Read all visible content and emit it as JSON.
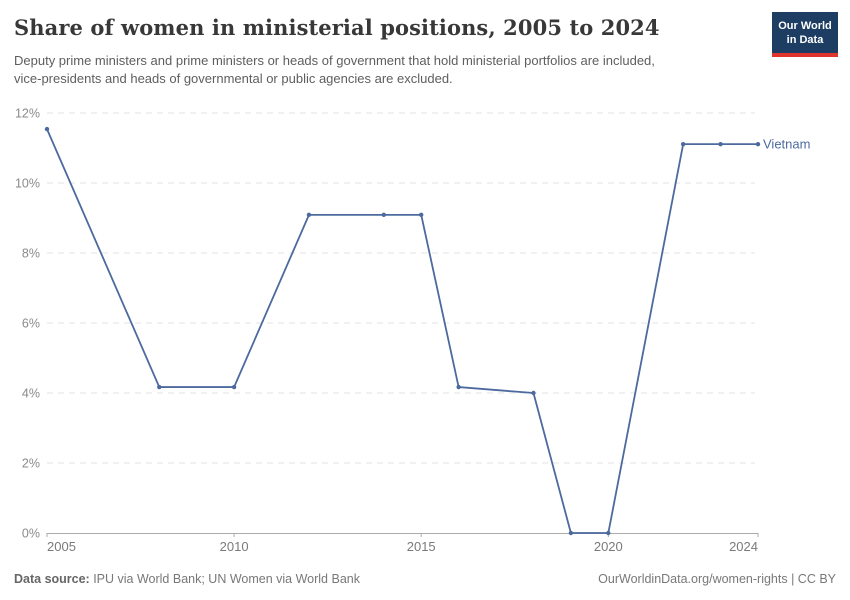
{
  "header": {
    "title": "Share of women in ministerial positions, 2005 to 2024",
    "subtitle": "Deputy prime ministers and prime ministers or heads of government that hold ministerial portfolios are included, vice-presidents and heads of governmental or public agencies are excluded.",
    "logo": {
      "line1": "Our World",
      "line2": "in Data",
      "bg_color": "#1d3d63",
      "accent_color": "#e0342c"
    }
  },
  "chart_data": {
    "type": "line",
    "title": "Share of women in ministerial positions, 2005 to 2024",
    "xlabel": "",
    "ylabel": "",
    "xlim": [
      2005,
      2024
    ],
    "ylim": [
      0,
      12
    ],
    "x_ticks": [
      2005,
      2010,
      2015,
      2020,
      2024
    ],
    "y_ticks": [
      0,
      2,
      4,
      6,
      8,
      10,
      12
    ],
    "y_tick_suffix": "%",
    "grid": "horizontal-dashed",
    "legend_position": "line-end-label",
    "series": [
      {
        "name": "Vietnam",
        "color": "#4c6a9e",
        "points": [
          {
            "year": 2005,
            "value": 11.54
          },
          {
            "year": 2008,
            "value": 4.17
          },
          {
            "year": 2010,
            "value": 4.17
          },
          {
            "year": 2012,
            "value": 9.09
          },
          {
            "year": 2014,
            "value": 9.09
          },
          {
            "year": 2015,
            "value": 9.09
          },
          {
            "year": 2016,
            "value": 4.17
          },
          {
            "year": 2018,
            "value": 4.0
          },
          {
            "year": 2019,
            "value": 0
          },
          {
            "year": 2020,
            "value": 0
          },
          {
            "year": 2022,
            "value": 11.11
          },
          {
            "year": 2023,
            "value": 11.11
          },
          {
            "year": 2024,
            "value": 11.11
          }
        ]
      }
    ]
  },
  "footer": {
    "source_label": "Data source:",
    "source_text": " IPU via World Bank; UN Women via World Bank",
    "right_text": "OurWorldinData.org/women-rights | CC BY"
  }
}
